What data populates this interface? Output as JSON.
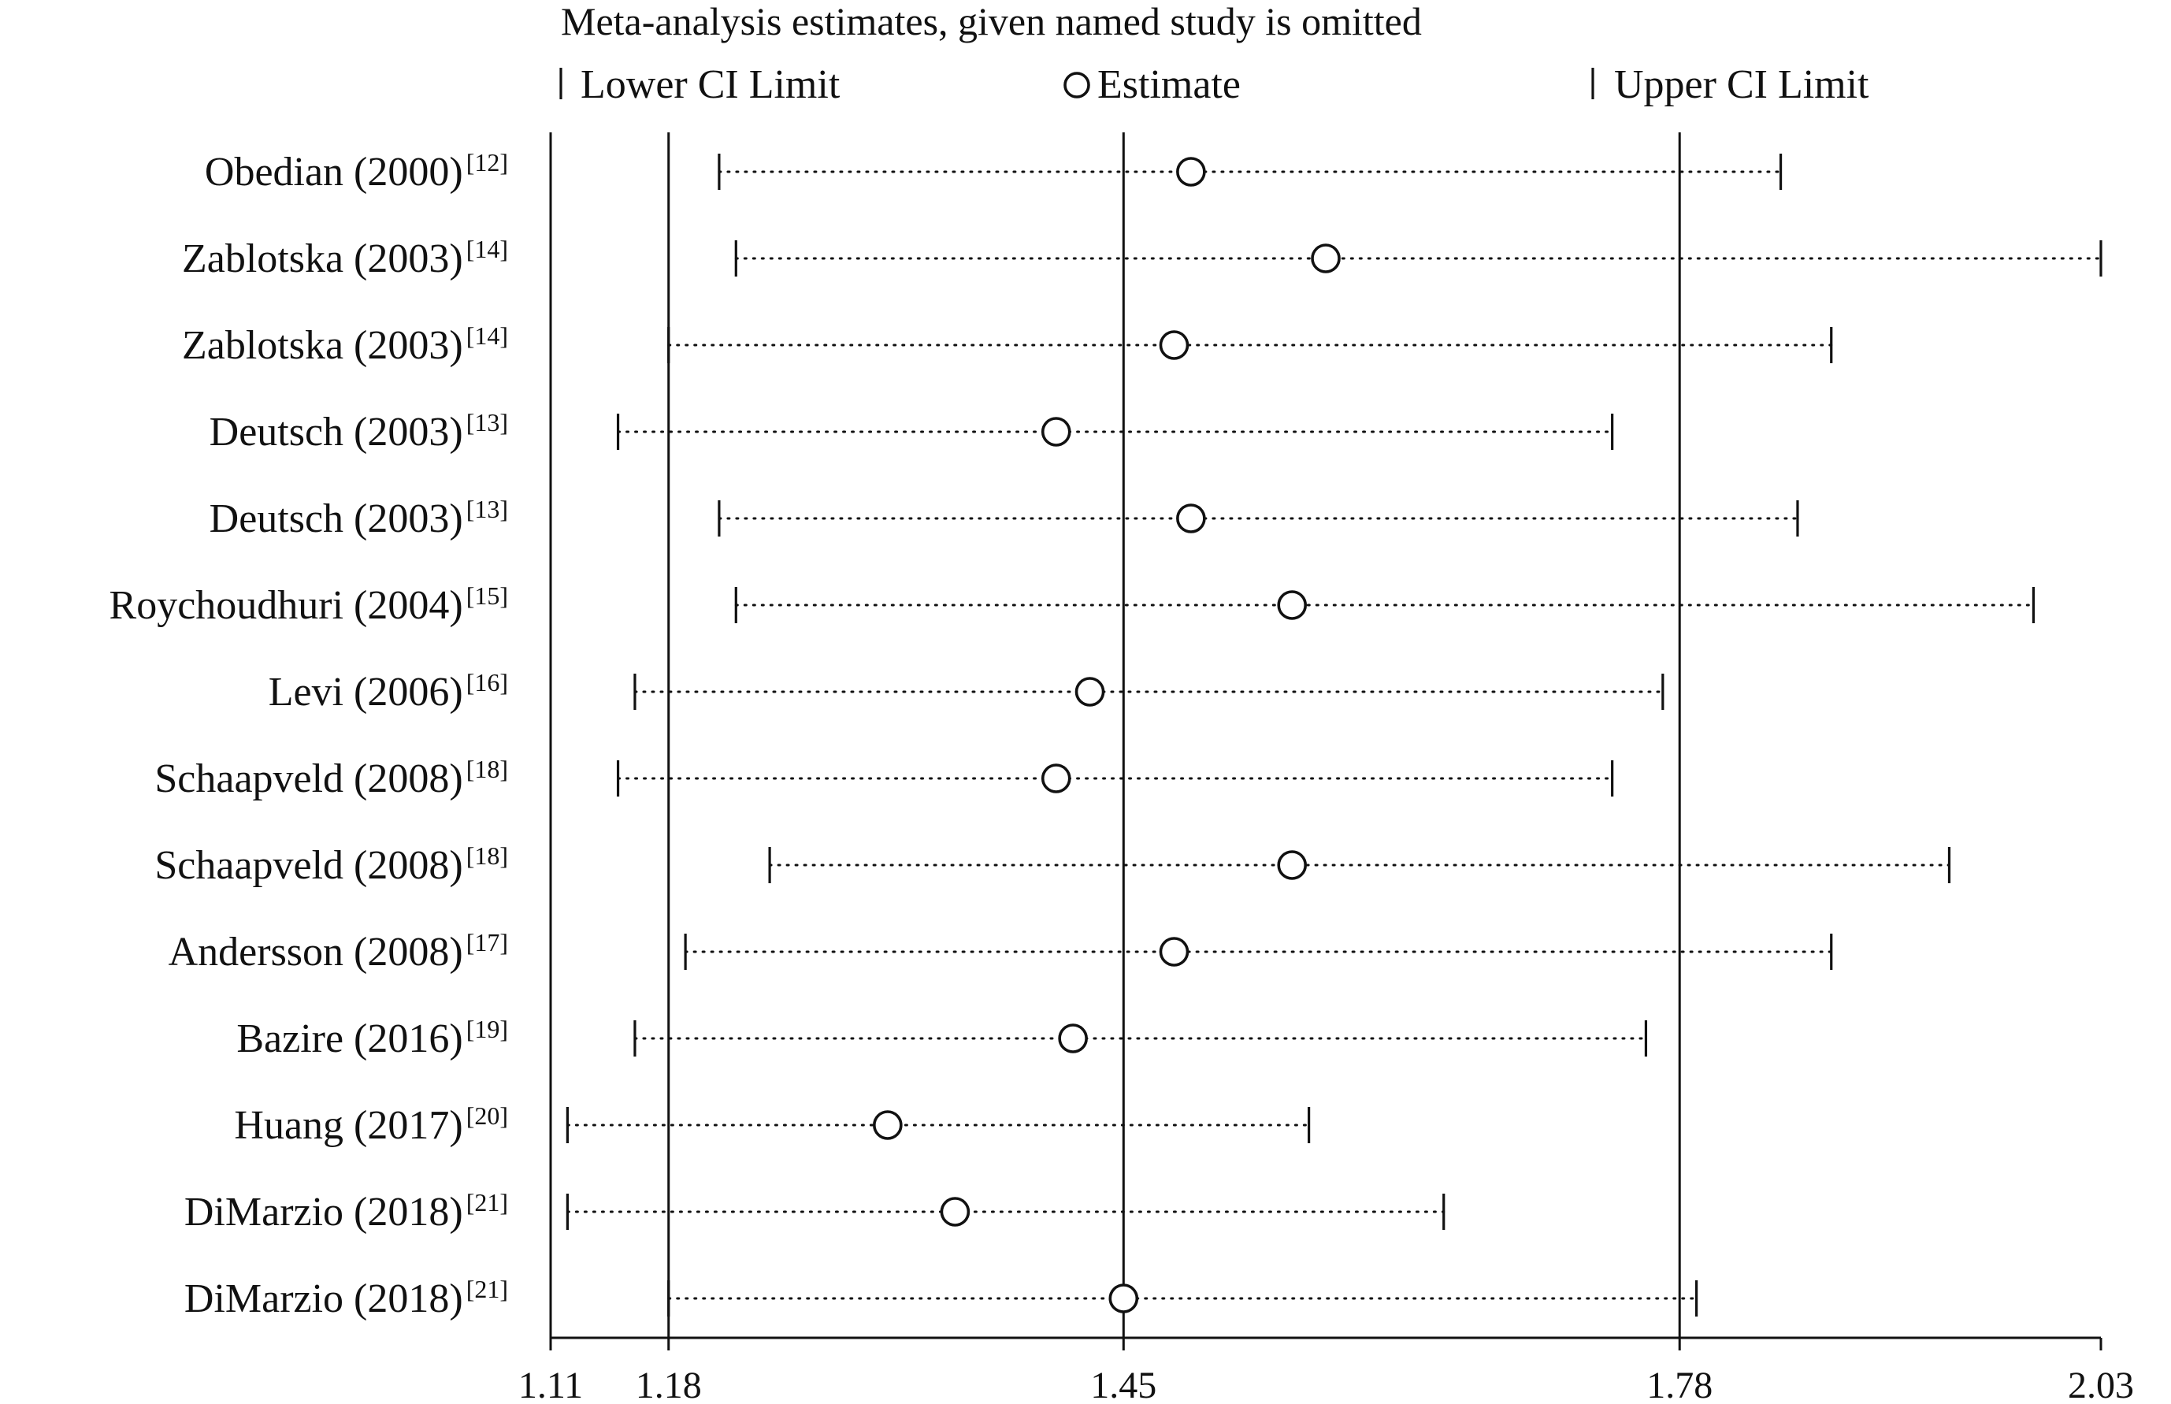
{
  "chart_data": {
    "type": "forest",
    "title": "Meta-analysis estimates, given named study is omitted",
    "legend": {
      "lower": "Lower CI Limit",
      "estimate": "Estimate",
      "upper": "Upper CI Limit",
      "placement": "top"
    },
    "x_ticks": [
      1.11,
      1.18,
      1.45,
      1.78,
      2.03
    ],
    "x_tick_labels": [
      "1.11",
      "1.18",
      "1.45",
      "1.78",
      "2.03"
    ],
    "xlim": [
      1.11,
      2.03
    ],
    "reference_lines": {
      "lower_ci": 1.18,
      "estimate": 1.45,
      "upper_ci": 1.78
    },
    "studies": [
      {
        "label": "Obedian (2000)",
        "ref": "[12]",
        "lower": 1.21,
        "estimate": 1.49,
        "upper": 1.84
      },
      {
        "label": "Zablotska (2003)",
        "ref": "[14]",
        "lower": 1.22,
        "estimate": 1.57,
        "upper": 2.03
      },
      {
        "label": "Zablotska (2003)",
        "ref": "[14]",
        "lower": 1.18,
        "estimate": 1.48,
        "upper": 1.87
      },
      {
        "label": "Deutsch (2003)",
        "ref": "[13]",
        "lower": 1.15,
        "estimate": 1.41,
        "upper": 1.74
      },
      {
        "label": "Deutsch (2003)",
        "ref": "[13]",
        "lower": 1.21,
        "estimate": 1.49,
        "upper": 1.85
      },
      {
        "label": "Roychoudhuri (2004)",
        "ref": "[15]",
        "lower": 1.22,
        "estimate": 1.55,
        "upper": 1.99
      },
      {
        "label": "Levi (2006)",
        "ref": "[16]",
        "lower": 1.16,
        "estimate": 1.43,
        "upper": 1.77
      },
      {
        "label": "Schaapveld (2008)",
        "ref": "[18]",
        "lower": 1.15,
        "estimate": 1.41,
        "upper": 1.74
      },
      {
        "label": "Schaapveld (2008)",
        "ref": "[18]",
        "lower": 1.24,
        "estimate": 1.55,
        "upper": 1.94
      },
      {
        "label": "Andersson (2008)",
        "ref": "[17]",
        "lower": 1.19,
        "estimate": 1.48,
        "upper": 1.87
      },
      {
        "label": "Bazire (2016)",
        "ref": "[19]",
        "lower": 1.16,
        "estimate": 1.42,
        "upper": 1.76
      },
      {
        "label": "Huang (2017)",
        "ref": "[20]",
        "lower": 1.12,
        "estimate": 1.31,
        "upper": 1.56
      },
      {
        "label": "DiMarzio (2018)",
        "ref": "[21]",
        "lower": 1.12,
        "estimate": 1.35,
        "upper": 1.64
      },
      {
        "label": "DiMarzio (2018)",
        "ref": "[21]",
        "lower": 1.18,
        "estimate": 1.45,
        "upper": 1.79
      }
    ]
  }
}
